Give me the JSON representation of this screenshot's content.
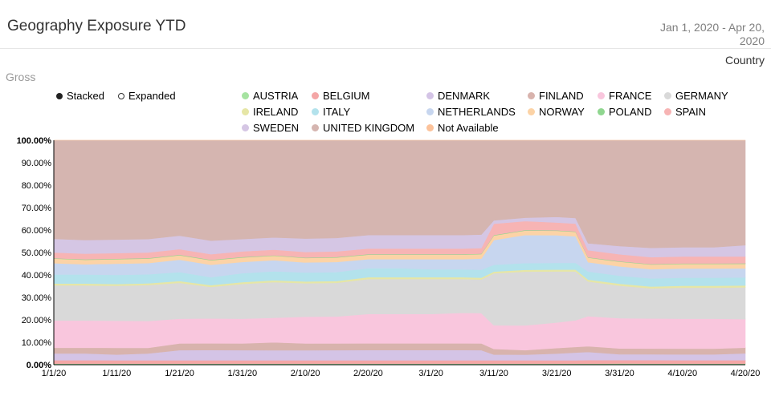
{
  "header": {
    "title": "Geography Exposure YTD",
    "date_range_line1": "Jan 1, 2020 - Apr 20,",
    "date_range_line2": "2020",
    "group_by": "Country"
  },
  "subtitle": "Gross",
  "modes": [
    {
      "label": "Stacked",
      "selected": true
    },
    {
      "label": "Expanded",
      "selected": false
    }
  ],
  "chart_data": {
    "type": "area",
    "stacked": true,
    "expanded": true,
    "x": [
      "1/1/20",
      "1/6/20",
      "1/11/20",
      "1/16/20",
      "1/21/20",
      "1/26/20",
      "1/31/20",
      "2/5/20",
      "2/10/20",
      "2/15/20",
      "2/20/20",
      "2/25/20",
      "3/1/20",
      "3/6/20",
      "3/9/20",
      "3/11/20",
      "3/16/20",
      "3/21/20",
      "3/24/20",
      "3/26/20",
      "3/31/20",
      "4/5/20",
      "4/10/20",
      "4/15/20",
      "4/20/20"
    ],
    "x_tick_labels": [
      "1/1/20",
      "1/11/20",
      "1/21/20",
      "1/31/20",
      "2/10/20",
      "2/20/20",
      "3/1/20",
      "3/11/20",
      "3/21/20",
      "3/31/20",
      "4/10/20",
      "4/20/20"
    ],
    "y_tick_labels": [
      "0.00%",
      "10.00%",
      "20.00%",
      "30.00%",
      "40.00%",
      "50.00%",
      "60.00%",
      "70.00%",
      "80.00%",
      "90.00%",
      "100.00%"
    ],
    "ylim": [
      0,
      100
    ],
    "legend_position": "top",
    "series": [
      {
        "name": "AUSTRIA",
        "color": "#a6e3a1",
        "values": [
          0.5,
          0.5,
          0.5,
          0.5,
          0.5,
          0.5,
          0.5,
          0.5,
          0.5,
          0.5,
          0.5,
          0.5,
          0.5,
          0.5,
          0.5,
          0.5,
          0.5,
          0.5,
          0.5,
          0.5,
          0.5,
          0.5,
          0.5,
          0.5,
          0.5
        ]
      },
      {
        "name": "BELGIUM",
        "color": "#f4a6a6",
        "values": [
          1.5,
          1.5,
          1.5,
          1.5,
          1.5,
          1.5,
          1.5,
          1.5,
          1.5,
          1.5,
          1.5,
          1.5,
          1.5,
          1.5,
          1.5,
          1.5,
          1.5,
          1.5,
          1.5,
          1.5,
          1.5,
          1.5,
          1.5,
          1.5,
          1.5
        ]
      },
      {
        "name": "DENMARK",
        "color": "#d4c4e6",
        "values": [
          3,
          3,
          2.5,
          3,
          4.5,
          4.5,
          4.5,
          4.5,
          4.5,
          4.5,
          4.5,
          4.5,
          4.5,
          4.5,
          4.5,
          2.5,
          2.5,
          3,
          3.5,
          3.5,
          2.5,
          2.5,
          2.5,
          2.5,
          3
        ]
      },
      {
        "name": "FINLAND",
        "color": "#d8b3ad",
        "values": [
          2.5,
          2.5,
          3,
          2.5,
          3,
          3,
          3,
          3.5,
          3,
          3,
          3,
          3,
          3,
          3,
          3,
          2.5,
          2,
          2.5,
          2.5,
          2.5,
          2.5,
          2.5,
          2.5,
          2.5,
          2.5
        ]
      },
      {
        "name": "FRANCE",
        "color": "#f9c6dd",
        "values": [
          12,
          12,
          12,
          12,
          11,
          11,
          11,
          11,
          12,
          12,
          13,
          13,
          13,
          13.5,
          13.5,
          10.5,
          11,
          11.5,
          12,
          13,
          13,
          13,
          13,
          13,
          12.5
        ]
      },
      {
        "name": "GERMANY",
        "color": "#d9d9d9",
        "values": [
          15.5,
          15.5,
          15.5,
          16,
          16,
          14,
          15.5,
          16,
          15,
          15,
          15.5,
          15.5,
          15.5,
          15,
          15,
          23,
          24,
          23,
          22,
          15,
          14,
          13,
          13.5,
          13.5,
          14
        ]
      },
      {
        "name": "IRELAND",
        "color": "#e6e6a6",
        "values": [
          0.8,
          0.8,
          0.8,
          0.8,
          0.8,
          0.8,
          0.8,
          0.8,
          0.8,
          0.8,
          0.8,
          0.8,
          0.8,
          0.8,
          0.8,
          0.8,
          0.8,
          0.8,
          0.8,
          0.8,
          0.8,
          0.8,
          0.8,
          0.8,
          0.8
        ]
      },
      {
        "name": "ITALY",
        "color": "#b3e2ec",
        "values": [
          4,
          4,
          4,
          4,
          4,
          3.5,
          4,
          4,
          4,
          4,
          4,
          4,
          3.5,
          3.5,
          3.5,
          3,
          3,
          3,
          3,
          3.5,
          3.5,
          3.5,
          3.5,
          3.5,
          3.5
        ]
      },
      {
        "name": "NETHERLANDS",
        "color": "#c7d6ef",
        "values": [
          5,
          4.5,
          5,
          5,
          5.5,
          5.5,
          5,
          5,
          4.5,
          4.5,
          4,
          4,
          4.5,
          4.5,
          5,
          11,
          12.5,
          12.5,
          12,
          4,
          4,
          4,
          4,
          4,
          4
        ]
      },
      {
        "name": "NORWAY",
        "color": "#fcd3a6",
        "values": [
          2,
          2,
          2,
          2,
          2,
          2,
          2,
          2,
          2,
          2,
          2,
          2,
          2,
          2,
          2,
          2,
          2,
          2,
          2,
          2,
          2,
          2,
          2,
          2,
          2
        ]
      },
      {
        "name": "POLAND",
        "color": "#8fd68f",
        "values": [
          0.2,
          0.2,
          0.2,
          0.2,
          0.2,
          0.2,
          0.2,
          0.2,
          0.2,
          0.2,
          0.2,
          0.2,
          0.2,
          0.2,
          0.2,
          0.2,
          0.2,
          0.2,
          0.2,
          0.2,
          0.2,
          0.2,
          0.2,
          0.2,
          0.2
        ]
      },
      {
        "name": "SPAIN",
        "color": "#f7b4b4",
        "values": [
          2.5,
          2.5,
          2.5,
          2.5,
          2.5,
          2.5,
          2.5,
          2.5,
          2.5,
          2.5,
          2.5,
          2.5,
          2.5,
          2.5,
          2.5,
          5,
          4,
          3.5,
          3.5,
          3,
          3,
          3,
          3,
          3,
          3
        ]
      },
      {
        "name": "SWEDEN",
        "color": "#d5c6e4",
        "values": [
          6,
          6,
          6,
          6,
          6,
          6,
          5.5,
          5.5,
          6,
          6,
          6,
          6,
          6,
          6,
          6,
          1.5,
          1.5,
          2.5,
          2.5,
          3,
          3.5,
          4,
          4,
          4,
          5
        ]
      },
      {
        "name": "UNITED KINGDOM",
        "color": "#d5b5b0",
        "values": [
          43.5,
          44,
          44,
          44,
          42.5,
          44.5,
          44,
          43.5,
          44,
          43.5,
          42,
          42,
          42,
          42,
          42,
          35.5,
          34.5,
          34.5,
          35,
          44.5,
          45.5,
          46.5,
          46.5,
          46.5,
          46
        ]
      },
      {
        "name": "Not Available",
        "color": "#fcc29a",
        "values": [
          0,
          0,
          0,
          0,
          0,
          0,
          0,
          0,
          0,
          0,
          0,
          0,
          0,
          0,
          0,
          0,
          0,
          0,
          0,
          0,
          0,
          0,
          0,
          0,
          0
        ]
      }
    ]
  }
}
